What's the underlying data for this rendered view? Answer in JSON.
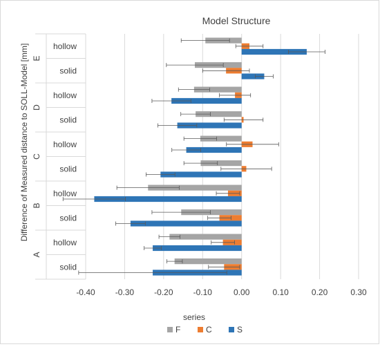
{
  "chart_data": {
    "type": "bar",
    "orientation": "horizontal",
    "title": "Model Structure",
    "xlabel": "",
    "ylabel": "Difference of Measured distance to SOLL-Model [mm]",
    "xlim": [
      -0.4,
      0.3
    ],
    "xticks": [
      "-0.40",
      "-0.30",
      "-0.20",
      "-0.10",
      "0.00",
      "0.10",
      "0.20",
      "0.30"
    ],
    "xtick_values": [
      -0.4,
      -0.3,
      -0.2,
      -0.1,
      0.0,
      0.1,
      0.2,
      0.3
    ],
    "grid": "vertical",
    "legend": {
      "title": "series",
      "placement": "bottom"
    },
    "groups": [
      {
        "name": "E",
        "categories": [
          "hollow",
          "solid"
        ]
      },
      {
        "name": "D",
        "categories": [
          "hollow",
          "solid"
        ]
      },
      {
        "name": "C",
        "categories": [
          "hollow",
          "solid"
        ]
      },
      {
        "name": "B",
        "categories": [
          "hollow",
          "solid"
        ]
      },
      {
        "name": "A",
        "categories": [
          "hollow",
          "solid"
        ]
      }
    ],
    "series": [
      {
        "name": "F",
        "color": "#a5a5a5",
        "values": [
          -0.093,
          -0.12,
          -0.122,
          -0.118,
          -0.106,
          -0.105,
          -0.24,
          -0.155,
          -0.185,
          -0.172
        ],
        "errors": [
          0.062,
          0.073,
          0.04,
          0.038,
          0.042,
          0.043,
          0.08,
          0.075,
          0.027,
          0.02
        ]
      },
      {
        "name": "C",
        "color": "#ed7d31",
        "values": [
          0.02,
          -0.04,
          -0.017,
          0.005,
          0.028,
          0.012,
          -0.035,
          -0.057,
          -0.048,
          -0.045
        ],
        "errors": [
          0.035,
          0.06,
          0.04,
          0.05,
          0.067,
          0.065,
          0.03,
          0.03,
          0.03,
          0.04
        ]
      },
      {
        "name": "S",
        "color": "#2e75b6",
        "values": [
          0.167,
          0.058,
          -0.18,
          -0.165,
          -0.142,
          -0.208,
          -0.378,
          -0.285,
          -0.228,
          -0.228
        ],
        "errors": [
          0.047,
          0.023,
          0.05,
          0.05,
          0.037,
          0.037,
          0.08,
          0.038,
          0.022,
          0.19
        ]
      }
    ]
  }
}
